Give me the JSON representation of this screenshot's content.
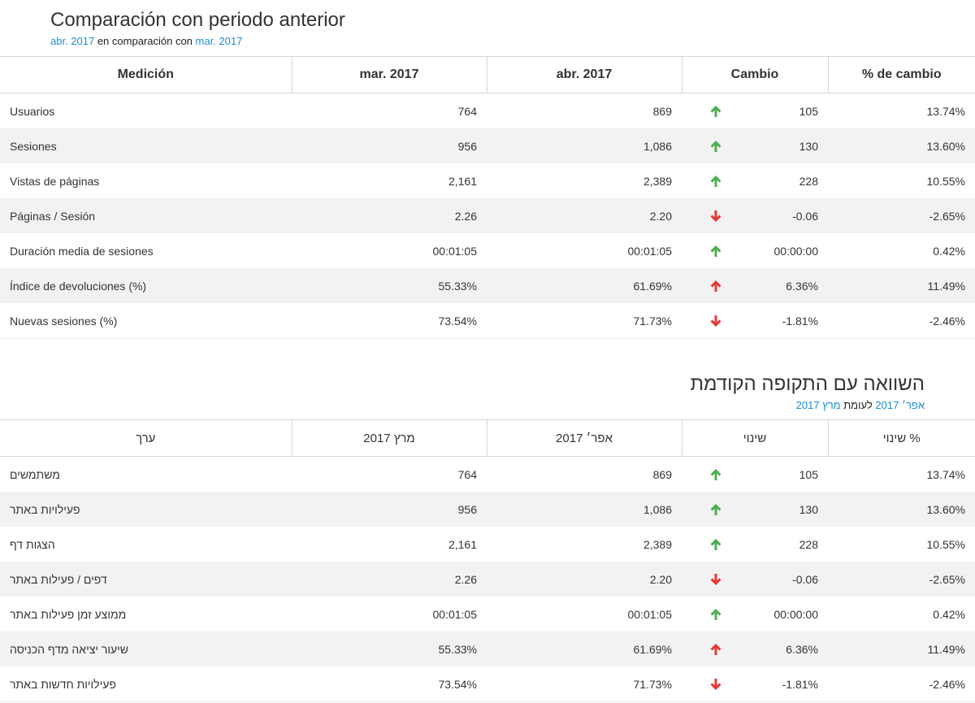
{
  "colors": {
    "date_accent": "#1a8fd0",
    "up": "#4caf50",
    "down": "#e53935",
    "stripe": "#f2f2f2"
  },
  "es": {
    "title": "Comparación con periodo anterior",
    "subtitle": {
      "date_a": "abr. 2017",
      "connector": " en comparación con ",
      "date_b": "mar. 2017"
    },
    "headers": [
      "Medición",
      "mar. 2017",
      "abr. 2017",
      "Cambio",
      "% de cambio"
    ],
    "rows": [
      {
        "metric": "Usuarios",
        "prev": "764",
        "curr": "869",
        "trend": "up",
        "change": "105",
        "pct": "13.74%"
      },
      {
        "metric": "Sesiones",
        "prev": "956",
        "curr": "1,086",
        "trend": "up",
        "change": "130",
        "pct": "13.60%"
      },
      {
        "metric": "Vistas de páginas",
        "prev": "2,161",
        "curr": "2,389",
        "trend": "up",
        "change": "228",
        "pct": "10.55%"
      },
      {
        "metric": "Páginas / Sesión",
        "prev": "2.26",
        "curr": "2.20",
        "trend": "down",
        "change": "-0.06",
        "pct": "-2.65%"
      },
      {
        "metric": "Duración media de sesiones",
        "prev": "00:01:05",
        "curr": "00:01:05",
        "trend": "up",
        "change": "00:00:00",
        "pct": "0.42%"
      },
      {
        "metric": "Índice de devoluciones (%)",
        "prev": "55.33%",
        "curr": "61.69%",
        "trend": "up-red",
        "change": "6.36%",
        "pct": "11.49%"
      },
      {
        "metric": "Nuevas sesiones (%)",
        "prev": "73.54%",
        "curr": "71.73%",
        "trend": "down",
        "change": "-1.81%",
        "pct": "-2.46%"
      }
    ]
  },
  "he": {
    "title": "השוואה עם התקופה הקודמת",
    "subtitle": {
      "date_a": "אפר׳ 2017",
      "connector": " לעומת ",
      "date_b": "מרץ 2017"
    },
    "headers": [
      "ערך",
      "מרץ 2017",
      "אפר׳ 2017",
      "שינוי",
      "שינוי %"
    ],
    "rows": [
      {
        "metric": "משתמשים",
        "prev": "764",
        "curr": "869",
        "trend": "up",
        "change": "105",
        "pct": "13.74%"
      },
      {
        "metric": "פעילויות באתר",
        "prev": "956",
        "curr": "1,086",
        "trend": "up",
        "change": "130",
        "pct": "13.60%"
      },
      {
        "metric": "הצגות דף",
        "prev": "2,161",
        "curr": "2,389",
        "trend": "up",
        "change": "228",
        "pct": "10.55%"
      },
      {
        "metric": "דפים / פעילות באתר",
        "prev": "2.26",
        "curr": "2.20",
        "trend": "down",
        "change": "-0.06",
        "pct": "-2.65%"
      },
      {
        "metric": "ממוצע זמן פעילות באתר",
        "prev": "00:01:05",
        "curr": "00:01:05",
        "trend": "up",
        "change": "00:00:00",
        "pct": "0.42%"
      },
      {
        "metric": "שיעור יציאה מדף הכניסה",
        "prev": "55.33%",
        "curr": "61.69%",
        "trend": "up-red",
        "change": "6.36%",
        "pct": "11.49%"
      },
      {
        "metric": "פעילויות חדשות באתר",
        "prev": "73.54%",
        "curr": "71.73%",
        "trend": "down",
        "change": "-1.81%",
        "pct": "-2.46%"
      }
    ]
  }
}
